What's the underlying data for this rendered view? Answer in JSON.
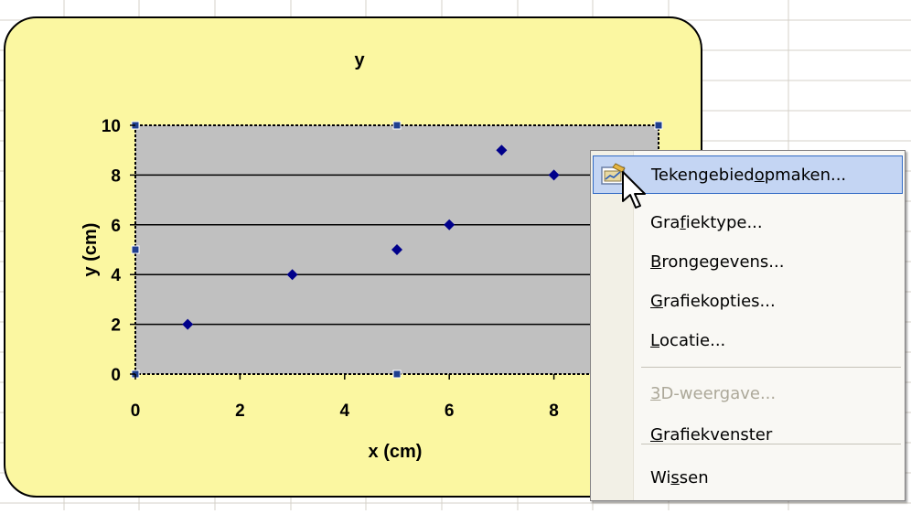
{
  "colors": {
    "chart_background": "#fbf7a1",
    "plot_background": "#c0c0c0",
    "marker": "#00008b",
    "menu_highlight": "#c4d5f3",
    "menu_highlight_border": "#316ac5",
    "disabled_text": "#aca899"
  },
  "chart_data": {
    "type": "scatter",
    "title": "y",
    "xlabel": "x (cm)",
    "ylabel": "y (cm)",
    "xlim": [
      0,
      10
    ],
    "ylim": [
      0,
      10
    ],
    "x_ticks": [
      0,
      2,
      4,
      6,
      8
    ],
    "y_ticks": [
      0,
      2,
      4,
      6,
      8,
      10
    ],
    "grid": "horizontal major gridlines",
    "marker": "diamond",
    "series": [
      {
        "x": [
          1,
          3,
          5,
          6,
          7,
          8
        ],
        "y": [
          2,
          4,
          5,
          6,
          9,
          8
        ]
      }
    ]
  },
  "context_menu": {
    "items": [
      {
        "pre": "Tekengebied ",
        "u": "o",
        "post": "pmaken...",
        "state": "highlighted",
        "icon": "format-plot-area-icon"
      },
      {
        "pre": "Gra",
        "u": "f",
        "post": "iektype...",
        "state": "normal"
      },
      {
        "pre": "",
        "u": "B",
        "post": "rongegevens...",
        "state": "normal"
      },
      {
        "pre": "",
        "u": "G",
        "post": "rafiekopties...",
        "state": "normal"
      },
      {
        "pre": "",
        "u": "L",
        "post": "ocatie...",
        "state": "normal"
      },
      {
        "pre": "",
        "u": "3",
        "post": "D-weergave...",
        "state": "disabled"
      },
      {
        "pre": "",
        "u": "G",
        "post": "rafiekvenster",
        "state": "normal"
      },
      {
        "pre": "Wi",
        "u": "s",
        "post": "sen",
        "state": "normal"
      }
    ]
  },
  "cursor": "arrow-pointer-icon"
}
